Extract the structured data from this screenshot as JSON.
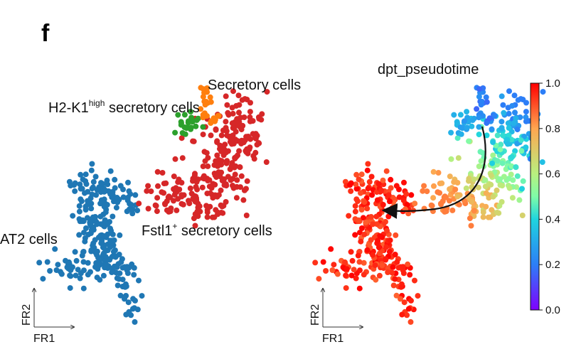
{
  "panel_letter": "f",
  "chart_data": [
    {
      "type": "scatter",
      "title": "",
      "xlabel": "FR1",
      "ylabel": "FR2",
      "annotations": {
        "at2": "AT2 cells",
        "secretory": "Secretory cells",
        "h2k1_main": "H2-K1",
        "h2k1_sup": "high",
        "h2k1_rest": " secretory cells",
        "fstl1_main": "Fstl1",
        "fstl1_sup": "+",
        "fstl1_rest": " secretory cells"
      },
      "series": [
        {
          "label": "AT2 cells",
          "color": "#1f77b4"
        },
        {
          "label": "Fstl1+ secretory cells",
          "color": "#d62728"
        },
        {
          "label": "H2-K1high secretory cells",
          "color": "#2ca02c"
        },
        {
          "label": "Secretory cells",
          "color": "#ff7f0e"
        }
      ]
    },
    {
      "type": "scatter",
      "title": "dpt_pseudotime",
      "xlabel": "FR1",
      "ylabel": "FR2",
      "colorbar": {
        "ticks": [
          "0.0",
          "0.2",
          "0.4",
          "0.6",
          "0.8",
          "1.0"
        ],
        "range": [
          0.0,
          1.0
        ],
        "colormap": "rainbow"
      }
    }
  ]
}
